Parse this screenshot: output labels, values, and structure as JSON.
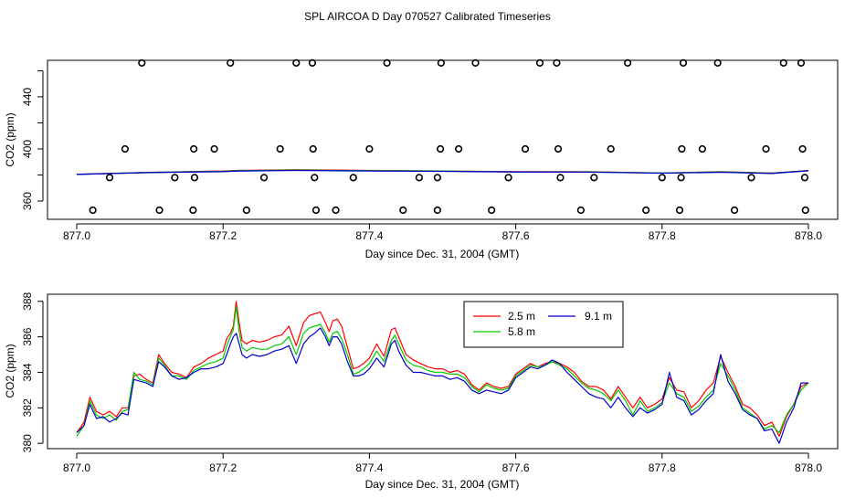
{
  "title": "SPL AIRCOA D  Day 070527  Calibrated Timeseries",
  "chart_data": [
    {
      "type": "scatter",
      "xlabel": "Day since Dec. 31, 2004 (GMT)",
      "ylabel": "CO2 (ppm)",
      "xlim": [
        877.0,
        878.0
      ],
      "ylim": [
        346,
        468
      ],
      "x_ticks": [
        877.0,
        877.2,
        877.4,
        877.6,
        877.8,
        878.0
      ],
      "x_tick_labels": [
        "877.0",
        "877.2",
        "877.4",
        "877.6",
        "877.8",
        "878.0"
      ],
      "y_ticks": [
        360,
        380,
        400,
        420,
        440,
        460
      ],
      "y_tick_labels": [
        "360",
        "",
        "400",
        "",
        "440",
        ""
      ],
      "series": [
        {
          "name": "points",
          "marker": "open-circle",
          "x": [
            0.022,
            0.045,
            0.066,
            0.089,
            0.113,
            0.134,
            0.159,
            0.161,
            0.16,
            0.188,
            0.21,
            0.232,
            0.256,
            0.278,
            0.3,
            0.322,
            0.323,
            0.325,
            0.327,
            0.354,
            0.378,
            0.4,
            0.424,
            0.446,
            0.468,
            0.493,
            0.493,
            0.497,
            0.498,
            0.522,
            0.545,
            0.567,
            0.59,
            0.613,
            0.633,
            0.656,
            0.658,
            0.661,
            0.689,
            0.73,
            0.707,
            0.778,
            0.753,
            0.8,
            0.824,
            0.826,
            0.827,
            0.829,
            0.855,
            0.876,
            0.899,
            0.922,
            0.942,
            0.966,
            0.99,
            0.992,
            0.995,
            0.996
          ],
          "y": [
            353,
            378,
            400,
            466,
            353,
            378,
            353,
            378,
            400,
            400,
            466,
            353,
            378,
            400,
            466,
            466,
            400,
            378,
            353,
            353,
            378,
            400,
            466,
            353,
            378,
            353,
            378,
            400,
            466,
            400,
            466,
            353,
            378,
            400,
            466,
            466,
            400,
            378,
            353,
            400,
            378,
            353,
            466,
            378,
            353,
            378,
            400,
            466,
            400,
            466,
            353,
            378,
            400,
            466,
            466,
            400,
            378,
            353
          ]
        },
        {
          "name": "2.5 m",
          "color": "#ff0000",
          "x": [
            0.0,
            0.1,
            0.2,
            0.22,
            0.3,
            0.4,
            0.5,
            0.6,
            0.7,
            0.8,
            0.88,
            0.95,
            1.0
          ],
          "y": [
            380.5,
            382.0,
            383.0,
            383.5,
            384.0,
            383.5,
            383.0,
            382.5,
            382.5,
            381.5,
            382.5,
            381.5,
            383.4
          ]
        },
        {
          "name": "5.8 m",
          "color": "#00cc00",
          "x": [
            0.0,
            0.1,
            0.2,
            0.22,
            0.3,
            0.4,
            0.5,
            0.6,
            0.7,
            0.8,
            0.88,
            0.95,
            1.0
          ],
          "y": [
            380.5,
            382.0,
            382.8,
            383.3,
            383.8,
            383.3,
            383.0,
            382.4,
            382.4,
            381.5,
            382.3,
            381.4,
            383.3
          ]
        },
        {
          "name": "9.1 m",
          "color": "#0000cc",
          "x": [
            0.0,
            0.1,
            0.2,
            0.22,
            0.3,
            0.4,
            0.5,
            0.6,
            0.7,
            0.8,
            0.88,
            0.95,
            1.0
          ],
          "y": [
            380.5,
            381.9,
            382.6,
            383.0,
            383.5,
            383.1,
            382.8,
            382.3,
            382.2,
            381.4,
            382.1,
            381.2,
            383.3
          ]
        }
      ]
    },
    {
      "type": "line",
      "xlabel": "Day since Dec. 31, 2004 (GMT)",
      "ylabel": "CO2 (ppm)",
      "xlim": [
        877.0,
        878.0
      ],
      "ylim": [
        379.7,
        388.4
      ],
      "x_ticks": [
        877.0,
        877.2,
        877.4,
        877.6,
        877.8,
        878.0
      ],
      "x_tick_labels": [
        "877.0",
        "877.2",
        "877.4",
        "877.6",
        "877.8",
        "878.0"
      ],
      "y_ticks": [
        380,
        382,
        384,
        386,
        388
      ],
      "y_tick_labels": [
        "380",
        "382",
        "384",
        "386",
        "388"
      ],
      "legend": {
        "position": "top-center",
        "entries": [
          "2.5 m",
          "9.1 m",
          "5.8 m"
        ]
      },
      "series": [
        {
          "name": "2.5 m",
          "color": "#ff0000",
          "x": [
            0.0,
            0.01,
            0.018,
            0.027,
            0.036,
            0.045,
            0.054,
            0.062,
            0.07,
            0.078,
            0.086,
            0.095,
            0.104,
            0.112,
            0.12,
            0.13,
            0.14,
            0.15,
            0.16,
            0.17,
            0.18,
            0.19,
            0.2,
            0.205,
            0.21,
            0.214,
            0.218,
            0.222,
            0.226,
            0.232,
            0.24,
            0.25,
            0.26,
            0.27,
            0.28,
            0.29,
            0.3,
            0.31,
            0.318,
            0.325,
            0.333,
            0.34,
            0.345,
            0.35,
            0.356,
            0.362,
            0.37,
            0.378,
            0.385,
            0.392,
            0.4,
            0.41,
            0.42,
            0.43,
            0.435,
            0.44,
            0.45,
            0.46,
            0.47,
            0.48,
            0.49,
            0.5,
            0.51,
            0.52,
            0.53,
            0.54,
            0.55,
            0.56,
            0.57,
            0.58,
            0.59,
            0.6,
            0.61,
            0.62,
            0.63,
            0.64,
            0.65,
            0.66,
            0.67,
            0.68,
            0.69,
            0.7,
            0.71,
            0.72,
            0.73,
            0.74,
            0.75,
            0.76,
            0.77,
            0.78,
            0.79,
            0.8,
            0.81,
            0.82,
            0.83,
            0.84,
            0.85,
            0.86,
            0.87,
            0.88,
            0.89,
            0.9,
            0.91,
            0.92,
            0.93,
            0.94,
            0.95,
            0.96,
            0.97,
            0.98,
            0.99,
            1.0
          ],
          "y": [
            380.6,
            381.2,
            382.6,
            381.8,
            381.6,
            381.8,
            381.5,
            382.0,
            382.0,
            383.8,
            383.9,
            383.6,
            383.4,
            385.0,
            384.5,
            384.0,
            383.9,
            383.7,
            384.3,
            384.5,
            384.8,
            385.0,
            385.2,
            385.9,
            386.2,
            386.6,
            388.0,
            386.8,
            385.8,
            385.6,
            385.8,
            385.7,
            385.8,
            386.0,
            386.1,
            386.6,
            385.5,
            386.8,
            387.2,
            387.3,
            387.4,
            386.8,
            386.3,
            386.9,
            387.0,
            386.6,
            385.4,
            384.2,
            384.3,
            384.5,
            384.8,
            385.6,
            384.9,
            386.4,
            386.5,
            386.0,
            385.0,
            384.7,
            384.5,
            384.3,
            384.2,
            384.2,
            384.0,
            384.1,
            383.9,
            383.3,
            383.0,
            383.4,
            383.2,
            383.1,
            383.2,
            383.9,
            384.2,
            384.5,
            384.3,
            384.5,
            384.6,
            384.5,
            384.3,
            384.0,
            383.5,
            383.2,
            383.2,
            383.0,
            382.5,
            383.2,
            382.6,
            382.0,
            382.6,
            382.0,
            382.2,
            382.5,
            383.7,
            383.0,
            382.9,
            382.0,
            382.4,
            383.0,
            383.4,
            384.9,
            384.0,
            383.2,
            382.2,
            382.0,
            381.6,
            381.0,
            381.2,
            380.4,
            381.5,
            382.2,
            383.2,
            383.4
          ]
        },
        {
          "name": "5.8 m",
          "color": "#00cc00",
          "x": [
            0.0,
            0.01,
            0.018,
            0.027,
            0.036,
            0.045,
            0.054,
            0.062,
            0.07,
            0.078,
            0.086,
            0.095,
            0.104,
            0.112,
            0.12,
            0.13,
            0.14,
            0.15,
            0.16,
            0.17,
            0.18,
            0.19,
            0.2,
            0.205,
            0.21,
            0.214,
            0.218,
            0.222,
            0.226,
            0.232,
            0.24,
            0.25,
            0.26,
            0.27,
            0.28,
            0.29,
            0.3,
            0.31,
            0.318,
            0.325,
            0.333,
            0.34,
            0.345,
            0.35,
            0.356,
            0.362,
            0.37,
            0.378,
            0.385,
            0.392,
            0.4,
            0.41,
            0.42,
            0.43,
            0.435,
            0.44,
            0.45,
            0.46,
            0.47,
            0.48,
            0.49,
            0.5,
            0.51,
            0.52,
            0.53,
            0.54,
            0.55,
            0.56,
            0.57,
            0.58,
            0.59,
            0.6,
            0.61,
            0.62,
            0.63,
            0.64,
            0.65,
            0.66,
            0.67,
            0.68,
            0.69,
            0.7,
            0.71,
            0.72,
            0.73,
            0.74,
            0.75,
            0.76,
            0.77,
            0.78,
            0.79,
            0.8,
            0.81,
            0.82,
            0.83,
            0.84,
            0.85,
            0.86,
            0.87,
            0.88,
            0.89,
            0.9,
            0.91,
            0.92,
            0.93,
            0.94,
            0.95,
            0.96,
            0.97,
            0.98,
            0.99,
            1.0
          ],
          "y": [
            380.4,
            381.0,
            382.4,
            381.6,
            381.4,
            381.6,
            381.3,
            381.8,
            381.9,
            384.0,
            383.6,
            383.5,
            383.3,
            384.8,
            384.4,
            383.8,
            383.8,
            383.6,
            384.1,
            384.3,
            384.5,
            384.6,
            384.8,
            385.5,
            386.0,
            386.4,
            387.7,
            386.3,
            385.4,
            385.2,
            385.4,
            385.3,
            385.3,
            385.5,
            385.6,
            386.0,
            385.0,
            386.2,
            386.5,
            386.6,
            386.7,
            386.2,
            385.7,
            386.2,
            386.3,
            385.9,
            385.0,
            383.9,
            384.0,
            384.2,
            384.5,
            385.2,
            384.6,
            385.8,
            386.1,
            385.6,
            384.7,
            384.4,
            384.3,
            384.1,
            384.0,
            384.0,
            383.9,
            383.9,
            383.7,
            383.2,
            382.9,
            383.3,
            383.1,
            383.0,
            383.1,
            383.8,
            384.1,
            384.4,
            384.3,
            384.4,
            384.6,
            384.4,
            384.2,
            383.8,
            383.4,
            383.1,
            383.0,
            382.8,
            382.4,
            383.0,
            382.4,
            381.6,
            382.4,
            381.8,
            382.0,
            382.3,
            383.4,
            382.8,
            382.6,
            381.8,
            382.1,
            382.6,
            383.0,
            384.5,
            383.8,
            383.0,
            382.0,
            381.7,
            381.4,
            380.8,
            381.0,
            380.6,
            381.6,
            382.2,
            383.0,
            383.4
          ]
        },
        {
          "name": "9.1 m",
          "color": "#0000cc",
          "x": [
            0.0,
            0.01,
            0.018,
            0.027,
            0.036,
            0.045,
            0.054,
            0.062,
            0.07,
            0.078,
            0.086,
            0.095,
            0.104,
            0.112,
            0.12,
            0.13,
            0.14,
            0.15,
            0.16,
            0.17,
            0.18,
            0.19,
            0.2,
            0.205,
            0.21,
            0.214,
            0.218,
            0.222,
            0.226,
            0.232,
            0.24,
            0.25,
            0.26,
            0.27,
            0.28,
            0.29,
            0.3,
            0.31,
            0.318,
            0.325,
            0.333,
            0.34,
            0.345,
            0.35,
            0.356,
            0.362,
            0.37,
            0.378,
            0.385,
            0.392,
            0.4,
            0.41,
            0.42,
            0.43,
            0.435,
            0.44,
            0.45,
            0.46,
            0.47,
            0.48,
            0.49,
            0.5,
            0.51,
            0.52,
            0.53,
            0.54,
            0.55,
            0.56,
            0.57,
            0.58,
            0.59,
            0.6,
            0.61,
            0.62,
            0.63,
            0.64,
            0.65,
            0.66,
            0.67,
            0.68,
            0.69,
            0.7,
            0.71,
            0.72,
            0.73,
            0.74,
            0.75,
            0.76,
            0.77,
            0.78,
            0.79,
            0.8,
            0.81,
            0.82,
            0.83,
            0.84,
            0.85,
            0.86,
            0.87,
            0.88,
            0.89,
            0.9,
            0.91,
            0.92,
            0.93,
            0.94,
            0.95,
            0.96,
            0.97,
            0.98,
            0.99,
            1.0
          ],
          "y": [
            380.6,
            381.0,
            382.2,
            381.4,
            381.5,
            381.2,
            381.4,
            381.7,
            381.6,
            383.6,
            383.5,
            383.4,
            383.2,
            384.6,
            384.3,
            383.8,
            383.6,
            383.7,
            384.0,
            384.2,
            384.2,
            384.3,
            384.5,
            385.0,
            385.6,
            386.0,
            386.2,
            385.6,
            385.0,
            384.8,
            385.0,
            384.9,
            385.0,
            385.2,
            385.3,
            385.5,
            384.5,
            385.6,
            386.0,
            386.2,
            386.5,
            386.0,
            385.5,
            386.0,
            386.0,
            385.6,
            384.6,
            383.8,
            383.8,
            383.9,
            384.2,
            384.8,
            384.3,
            385.6,
            385.8,
            385.2,
            384.4,
            384.0,
            384.0,
            383.9,
            383.8,
            383.8,
            383.6,
            383.7,
            383.5,
            383.0,
            382.8,
            383.0,
            382.9,
            382.8,
            383.0,
            383.7,
            384.0,
            384.3,
            384.2,
            384.4,
            384.7,
            384.5,
            384.0,
            383.6,
            383.2,
            382.8,
            382.6,
            382.5,
            382.0,
            382.6,
            382.0,
            381.5,
            382.0,
            381.7,
            381.9,
            382.2,
            384.0,
            382.6,
            382.4,
            381.6,
            381.9,
            382.4,
            382.8,
            385.0,
            383.5,
            382.8,
            381.9,
            381.6,
            381.4,
            380.7,
            380.8,
            380.0,
            381.2,
            382.0,
            383.4,
            383.4
          ]
        }
      ]
    }
  ]
}
